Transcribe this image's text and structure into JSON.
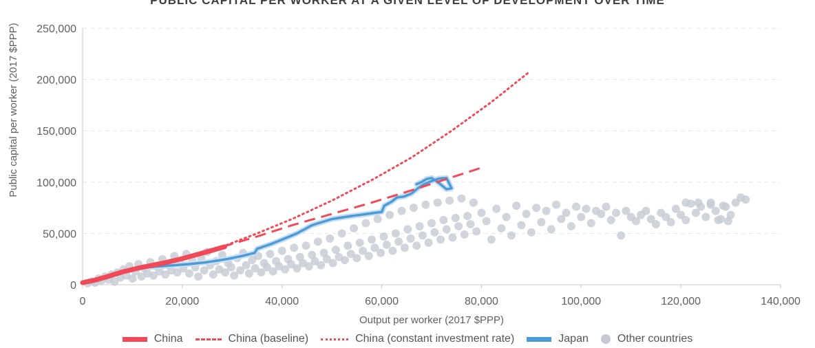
{
  "title": "PUBLIC CAPITAL PER WORKER AT A GIVEN LEVEL OF DEVELOPMENT OVER TIME",
  "colors": {
    "china": "#f04a59",
    "japan": "#4d9bd6",
    "japan_halo": "#c9def0",
    "others": "#c4cad3",
    "grid": "#e3e7ec",
    "axis": "#c9c9c9"
  },
  "chart_data": {
    "type": "scatter",
    "xlabel": "Output per worker (2017 $PPP)",
    "ylabel": "Public capital per worker (2017 $PPP)",
    "xlim": [
      0,
      140000
    ],
    "ylim": [
      0,
      250000
    ],
    "x_ticks": [
      "0",
      "20,000",
      "40,000",
      "60,000",
      "80,000",
      "100,000",
      "120,000",
      "140,000"
    ],
    "y_ticks": [
      "0",
      "50,000",
      "100,000",
      "150,000",
      "200,000",
      "250,000"
    ],
    "grid": "horizontal dashed",
    "legend_position": "bottom",
    "series": [
      {
        "name": "China",
        "style": "solid",
        "x": [
          0,
          2500,
          5000,
          8000,
          11000,
          14000,
          17000,
          20000,
          23000,
          26000,
          28500
        ],
        "y": [
          2000,
          4500,
          8000,
          12500,
          16000,
          19000,
          22000,
          25500,
          29500,
          33500,
          37000
        ]
      },
      {
        "name": "China (baseline)",
        "style": "dashed",
        "x": [
          28000,
          35000,
          42000,
          50000,
          58000,
          66000,
          73000,
          80000
        ],
        "y": [
          37000,
          47000,
          58000,
          69000,
          80000,
          92000,
          103000,
          114000
        ]
      },
      {
        "name": "China (constant investment rate)",
        "style": "dotted",
        "x": [
          28000,
          35000,
          42000,
          50000,
          58000,
          66000,
          74000,
          82000,
          89500
        ],
        "y": [
          37000,
          50000,
          64000,
          82000,
          102000,
          124000,
          150000,
          178000,
          207000
        ]
      },
      {
        "name": "Japan",
        "style": "solid",
        "x": [
          13000,
          17000,
          21000,
          25000,
          29000,
          32000,
          34500,
          35000,
          38000,
          41000,
          43000,
          46000,
          50000,
          54000,
          57000,
          60000,
          60500,
          62000,
          63000,
          64500,
          66000,
          67500,
          68500,
          70000,
          71500,
          73000,
          74000,
          73000,
          72000,
          71000,
          70000,
          69000,
          68000,
          67000
        ],
        "y": [
          17000,
          18500,
          20000,
          22000,
          25000,
          28000,
          31000,
          35000,
          40000,
          46000,
          50000,
          58000,
          64000,
          67000,
          69000,
          71000,
          77000,
          81000,
          85000,
          86000,
          89000,
          95000,
          98000,
          101000,
          103500,
          104000,
          94000,
          93000,
          97000,
          101000,
          104000,
          103000,
          100000,
          98000
        ]
      },
      {
        "name": "Other countries",
        "style": "markers",
        "points": [
          [
            1000,
            1500
          ],
          [
            1800,
            3200
          ],
          [
            2500,
            2000
          ],
          [
            3200,
            6000
          ],
          [
            3800,
            4200
          ],
          [
            4500,
            8000
          ],
          [
            5200,
            5000
          ],
          [
            5800,
            10000
          ],
          [
            6400,
            3000
          ],
          [
            7000,
            12000
          ],
          [
            7600,
            7000
          ],
          [
            8200,
            15000
          ],
          [
            8800,
            9000
          ],
          [
            9400,
            18000
          ],
          [
            10000,
            6000
          ],
          [
            10600,
            13000
          ],
          [
            11200,
            20000
          ],
          [
            11800,
            8000
          ],
          [
            12400,
            16000
          ],
          [
            13000,
            11000
          ],
          [
            13600,
            22000
          ],
          [
            14200,
            9000
          ],
          [
            14800,
            18000
          ],
          [
            15400,
            13000
          ],
          [
            16000,
            25000
          ],
          [
            16600,
            10000
          ],
          [
            17200,
            19000
          ],
          [
            17800,
            14000
          ],
          [
            18400,
            28000
          ],
          [
            19000,
            12000
          ],
          [
            19600,
            21000
          ],
          [
            20200,
            16000
          ],
          [
            20800,
            30000
          ],
          [
            21400,
            11000
          ],
          [
            22000,
            24000
          ],
          [
            22600,
            17000
          ],
          [
            23200,
            8000
          ],
          [
            23800,
            26000
          ],
          [
            24400,
            14000
          ],
          [
            25000,
            32000
          ],
          [
            25600,
            19000
          ],
          [
            26200,
            10000
          ],
          [
            26800,
            23000
          ],
          [
            27400,
            15000
          ],
          [
            28000,
            29000
          ],
          [
            28600,
            12000
          ],
          [
            29200,
            21000
          ],
          [
            29800,
            17000
          ],
          [
            30400,
            9000
          ],
          [
            31000,
            26000
          ],
          [
            31600,
            14000
          ],
          [
            32200,
            31000
          ],
          [
            32800,
            19000
          ],
          [
            33400,
            11000
          ],
          [
            34000,
            24000
          ],
          [
            34600,
            16000
          ],
          [
            35200,
            28000
          ],
          [
            35800,
            12000
          ],
          [
            36400,
            21000
          ],
          [
            37000,
            17000
          ],
          [
            37600,
            30000
          ],
          [
            38200,
            13000
          ],
          [
            38800,
            23000
          ],
          [
            39400,
            18000
          ],
          [
            40000,
            33000
          ],
          [
            40600,
            15000
          ],
          [
            41200,
            25000
          ],
          [
            41800,
            20000
          ],
          [
            42400,
            36000
          ],
          [
            43000,
            16000
          ],
          [
            43600,
            27000
          ],
          [
            44200,
            21000
          ],
          [
            44800,
            38000
          ],
          [
            45400,
            18000
          ],
          [
            46000,
            29000
          ],
          [
            46600,
            23000
          ],
          [
            47200,
            42000
          ],
          [
            47800,
            19000
          ],
          [
            48400,
            31000
          ],
          [
            49000,
            25000
          ],
          [
            49600,
            45000
          ],
          [
            50200,
            21000
          ],
          [
            50800,
            34000
          ],
          [
            51400,
            27000
          ],
          [
            52000,
            50000
          ],
          [
            52600,
            24000
          ],
          [
            53200,
            38000
          ],
          [
            53800,
            30000
          ],
          [
            54400,
            55000
          ],
          [
            55000,
            26000
          ],
          [
            55600,
            41000
          ],
          [
            56200,
            33000
          ],
          [
            56800,
            60000
          ],
          [
            57400,
            28000
          ],
          [
            58000,
            44000
          ],
          [
            58600,
            36000
          ],
          [
            59200,
            64000
          ],
          [
            59800,
            31000
          ],
          [
            60400,
            47000
          ],
          [
            61000,
            39000
          ],
          [
            61600,
            68000
          ],
          [
            62200,
            33000
          ],
          [
            62800,
            50000
          ],
          [
            63400,
            42000
          ],
          [
            64000,
            72000
          ],
          [
            64600,
            36000
          ],
          [
            65200,
            54000
          ],
          [
            65800,
            45000
          ],
          [
            66400,
            75000
          ],
          [
            67000,
            38000
          ],
          [
            67600,
            57000
          ],
          [
            68200,
            48000
          ],
          [
            68800,
            78000
          ],
          [
            69400,
            41000
          ],
          [
            70000,
            60000
          ],
          [
            70600,
            51000
          ],
          [
            71200,
            80000
          ],
          [
            71800,
            44000
          ],
          [
            72400,
            63000
          ],
          [
            73000,
            54000
          ],
          [
            73600,
            82000
          ],
          [
            74200,
            46000
          ],
          [
            74800,
            65000
          ],
          [
            75400,
            57000
          ],
          [
            76000,
            84000
          ],
          [
            76600,
            49000
          ],
          [
            77200,
            67000
          ],
          [
            77800,
            59000
          ],
          [
            78400,
            80000
          ],
          [
            79000,
            52000
          ],
          [
            80000,
            70000
          ],
          [
            81000,
            62000
          ],
          [
            82000,
            44000
          ],
          [
            83000,
            74000
          ],
          [
            84000,
            55000
          ],
          [
            85000,
            66000
          ],
          [
            86000,
            48000
          ],
          [
            87000,
            77000
          ],
          [
            88000,
            58000
          ],
          [
            89000,
            69000
          ],
          [
            90000,
            51000
          ],
          [
            91000,
            75000
          ],
          [
            92000,
            61000
          ],
          [
            93000,
            72000
          ],
          [
            94000,
            54000
          ],
          [
            95000,
            78000
          ],
          [
            96000,
            64000
          ],
          [
            97000,
            70000
          ],
          [
            98000,
            57000
          ],
          [
            99000,
            76000
          ],
          [
            100000,
            66000
          ],
          [
            101000,
            74000
          ],
          [
            102000,
            60000
          ],
          [
            103000,
            72000
          ],
          [
            104000,
            69000
          ],
          [
            105000,
            76000
          ],
          [
            106000,
            63000
          ],
          [
            107000,
            70000
          ],
          [
            108000,
            48000
          ],
          [
            109000,
            72000
          ],
          [
            110000,
            66000
          ],
          [
            111000,
            62000
          ],
          [
            112000,
            68000
          ],
          [
            113000,
            72000
          ],
          [
            114000,
            64000
          ],
          [
            115000,
            59000
          ],
          [
            116000,
            70000
          ],
          [
            117000,
            66000
          ],
          [
            118000,
            61000
          ],
          [
            119000,
            74000
          ],
          [
            120000,
            68000
          ],
          [
            121000,
            63000
          ],
          [
            122000,
            79000
          ],
          [
            123000,
            70000
          ],
          [
            124000,
            76000
          ],
          [
            125000,
            66000
          ],
          [
            126000,
            78000
          ],
          [
            127000,
            72000
          ],
          [
            128000,
            64000
          ],
          [
            129000,
            76000
          ],
          [
            130000,
            68000
          ],
          [
            131000,
            80000
          ],
          [
            132000,
            85000
          ],
          [
            133000,
            83000
          ],
          [
            121000,
            80000
          ],
          [
            123500,
            80000
          ],
          [
            126000,
            80000
          ],
          [
            128500,
            77000
          ],
          [
            129500,
            62000
          ],
          [
            127500,
            63000
          ]
        ]
      }
    ]
  }
}
